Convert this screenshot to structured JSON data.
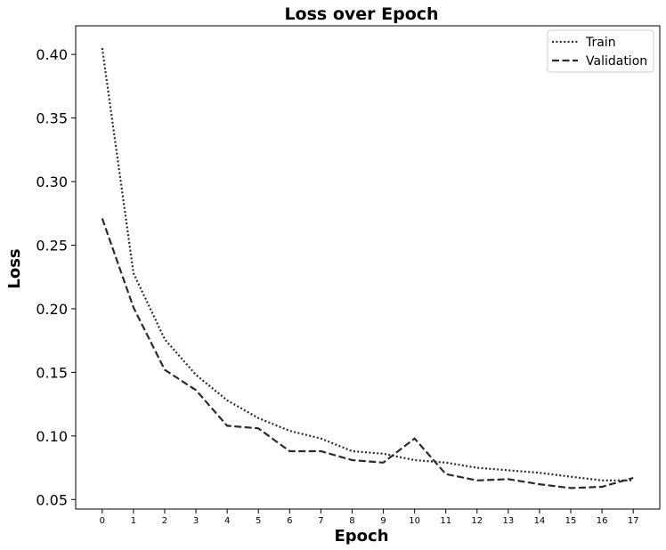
{
  "chart_data": {
    "type": "line",
    "title": "Loss over Epoch",
    "xlabel": "Epoch",
    "ylabel": "Loss",
    "x": [
      0,
      1,
      2,
      3,
      4,
      5,
      6,
      7,
      8,
      9,
      10,
      11,
      12,
      13,
      14,
      15,
      16,
      17
    ],
    "xlim": [
      -0.85,
      17.85
    ],
    "ylim": [
      0.0425,
      0.4225
    ],
    "yticks": [
      "0.05",
      "0.10",
      "0.15",
      "0.20",
      "0.25",
      "0.30",
      "0.35",
      "0.40"
    ],
    "xticks": [
      "0",
      "1",
      "2",
      "3",
      "4",
      "5",
      "6",
      "7",
      "8",
      "9",
      "10",
      "11",
      "12",
      "13",
      "14",
      "15",
      "16",
      "17"
    ],
    "grid": false,
    "legend_position": "top-right",
    "series": [
      {
        "name": "Train",
        "style": "dotted",
        "color": "#2b2b2b",
        "values": [
          0.405,
          0.228,
          0.176,
          0.148,
          0.128,
          0.114,
          0.104,
          0.098,
          0.088,
          0.086,
          0.081,
          0.079,
          0.075,
          0.073,
          0.071,
          0.068,
          0.065,
          0.065
        ]
      },
      {
        "name": "Validation",
        "style": "dashed",
        "color": "#2b2b2b",
        "values": [
          0.271,
          0.201,
          0.152,
          0.136,
          0.108,
          0.106,
          0.088,
          0.088,
          0.081,
          0.079,
          0.098,
          0.07,
          0.065,
          0.066,
          0.062,
          0.059,
          0.06,
          0.067
        ]
      }
    ]
  }
}
